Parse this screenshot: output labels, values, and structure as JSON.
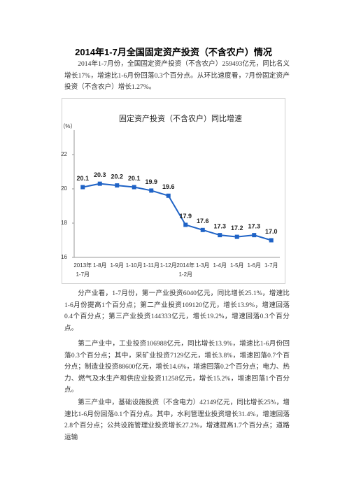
{
  "title": "2014年1-7月全国固定资产投资（不含农户）情况",
  "paragraphs": [
    "2014年1-7月份，全国固定资产投资（不含农户）259493亿元，同比名义增长17%，增速比1-6月份回落0.3个百分点。从环比速度看，7月份固定资产投资（不含农户）增长1.27%。",
    "分产业看，1-7月份，第一产业投资6040亿元，同比增长25.1%，增速比1-6月份提高1个百分点；第二产业投资109120亿元，增长13.9%，增速回落0.4个百分点；第三产业投资144333亿元，增长19.2%，增速回落0.3个百分点。",
    "第二产业中，工业投资106988亿元，同比增长13.9%，增速比1-6月份回落0.3个百分点；其中，采矿业投资7129亿元，增长3.8%，增速回落0.7个百分点；制造业投资88600亿元，增长14.6%，增速回落0.2个百分点；电力、热力、燃气及水生产和供应业投资11258亿元，增长15.2%，增速回落1个百分点。",
    "第三产业中，基础设施投资（不含电力）42149亿元，同比增长25%，增速比1-6月份回落0.1个百分点。其中，水利管理业投资增长31.4%，增速回落2.8个百分点；公共设施管理业投资增长27.2%，增速提高1.7个百分点；道路运输"
  ],
  "chart_data": {
    "type": "line",
    "title": "固定资产投资（不含农户）同比增速",
    "y_label": "（%）",
    "categories": [
      "2013年1-7月",
      "1-8月",
      "1-9月",
      "1-10月",
      "1-11月",
      "1-12月",
      "2014年1-2月",
      "1-3月",
      "1-4月",
      "1-5月",
      "1-6月",
      "1-7月"
    ],
    "values": [
      20.1,
      20.3,
      20.2,
      20.1,
      19.9,
      19.6,
      17.9,
      17.6,
      17.3,
      17.2,
      17.3,
      17.0
    ],
    "value_labels": [
      "20.1",
      "20.3",
      "20.2",
      "20.1",
      "19.9",
      "19.6",
      "17.9",
      "17.6",
      "17.3",
      "17.2",
      "17.3",
      "17.0"
    ],
    "color": "#1f63c6",
    "ylim": [
      16,
      24
    ],
    "yticks": [
      16,
      18,
      20,
      22
    ],
    "grid": false
  }
}
